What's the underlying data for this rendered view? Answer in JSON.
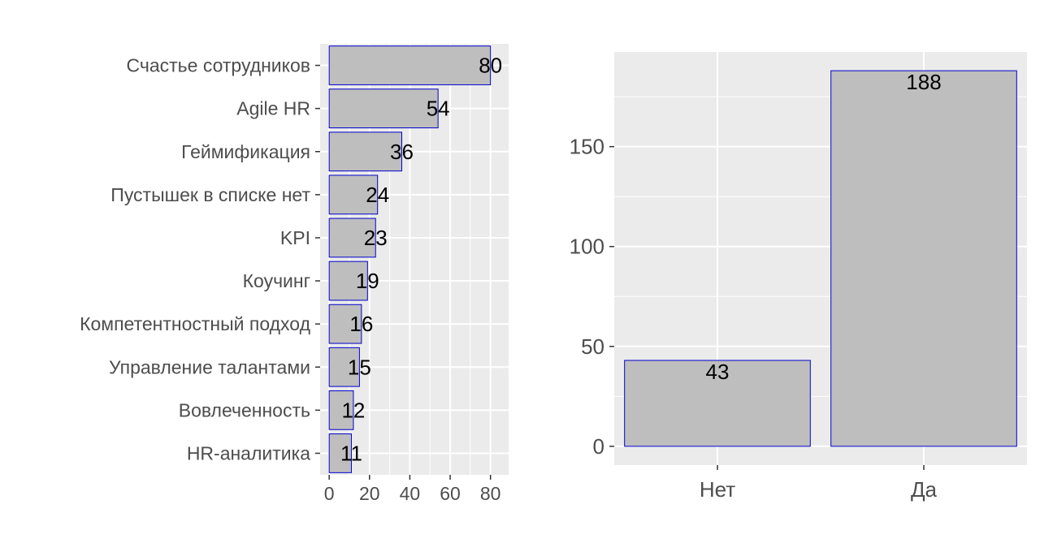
{
  "chart_data": [
    {
      "type": "bar",
      "orientation": "horizontal",
      "categories": [
        "Счастье сотрудников",
        "Agile HR",
        "Геймификация",
        "Пустышек в списке нет",
        "KPI",
        "Коучинг",
        "Компетентностный подход",
        "Управление талантами",
        "Вовлеченность",
        "HR-аналитика"
      ],
      "values": [
        80,
        54,
        36,
        24,
        23,
        19,
        16,
        15,
        12,
        11
      ],
      "data_labels": [
        "80",
        "54",
        "36",
        "24",
        "23",
        "19",
        "16",
        "15",
        "12",
        "11"
      ],
      "x_ticks": [
        "0",
        "20",
        "40",
        "60",
        "80"
      ],
      "xlim": [
        -4.5,
        89
      ],
      "title": "",
      "xlabel": "",
      "ylabel": "",
      "grid": true,
      "colors": {
        "panel": "#ebebeb",
        "grid": "#ffffff",
        "bar_fill": "#bebebe",
        "bar_stroke": "#0000cd"
      }
    },
    {
      "type": "bar",
      "orientation": "vertical",
      "categories": [
        "Нет",
        "Да"
      ],
      "values": [
        43,
        188
      ],
      "data_labels": [
        "43",
        "188"
      ],
      "y_ticks": [
        "0",
        "50",
        "100",
        "150"
      ],
      "ylim": [
        -9.4,
        197.4
      ],
      "title": "",
      "xlabel": "",
      "ylabel": "",
      "grid": true,
      "colors": {
        "panel": "#ebebeb",
        "grid": "#ffffff",
        "bar_fill": "#bebebe",
        "bar_stroke": "#0000cd"
      }
    }
  ]
}
